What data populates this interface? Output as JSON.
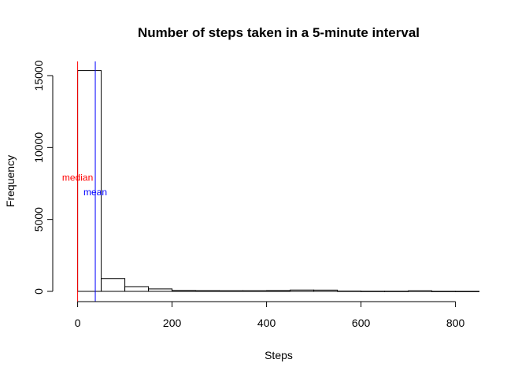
{
  "chart_data": {
    "type": "bar",
    "title": "Number of steps taken in a 5-minute interval",
    "xlabel": "Steps",
    "ylabel": "Frequency",
    "xlim": [
      0,
      850
    ],
    "ylim": [
      0,
      16000
    ],
    "x_ticks": [
      0,
      200,
      400,
      600,
      800
    ],
    "y_ticks": [
      0,
      5000,
      10000,
      15000
    ],
    "bins": [
      {
        "start": 0,
        "end": 50,
        "count": 15350
      },
      {
        "start": 50,
        "end": 100,
        "count": 890
      },
      {
        "start": 100,
        "end": 150,
        "count": 330
      },
      {
        "start": 150,
        "end": 200,
        "count": 170
      },
      {
        "start": 200,
        "end": 250,
        "count": 60
      },
      {
        "start": 250,
        "end": 300,
        "count": 50
      },
      {
        "start": 300,
        "end": 350,
        "count": 45
      },
      {
        "start": 350,
        "end": 400,
        "count": 45
      },
      {
        "start": 400,
        "end": 450,
        "count": 55
      },
      {
        "start": 450,
        "end": 500,
        "count": 95
      },
      {
        "start": 500,
        "end": 550,
        "count": 90
      },
      {
        "start": 550,
        "end": 600,
        "count": 20
      },
      {
        "start": 600,
        "end": 650,
        "count": 10
      },
      {
        "start": 650,
        "end": 700,
        "count": 10
      },
      {
        "start": 700,
        "end": 750,
        "count": 40
      },
      {
        "start": 750,
        "end": 800,
        "count": 5
      },
      {
        "start": 800,
        "end": 850,
        "count": 3
      }
    ],
    "annotations": [
      {
        "label": "median",
        "value": 0,
        "color": "#ff0000",
        "label_y": 7900
      },
      {
        "label": "mean",
        "value": 37.4,
        "color": "#0000ff",
        "label_y": 6900
      }
    ],
    "grid": false,
    "legend": "none"
  }
}
